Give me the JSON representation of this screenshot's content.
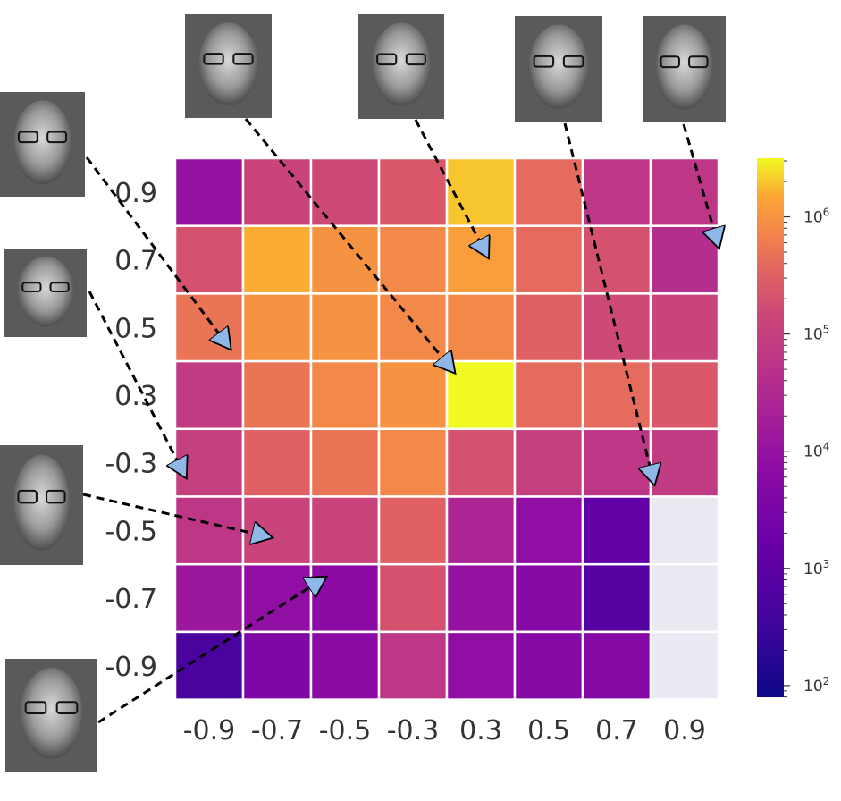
{
  "chart_data": {
    "type": "heatmap",
    "title": "",
    "xlabel": "",
    "ylabel": "",
    "x_categories": [
      "-0.9",
      "-0.7",
      "-0.5",
      "-0.3",
      "0.3",
      "0.5",
      "0.7",
      "0.9"
    ],
    "y_categories": [
      "0.9",
      "0.7",
      "0.5",
      "0.3",
      "-0.3",
      "-0.5",
      "-0.7",
      "-0.9"
    ],
    "values_log10": [
      [
        4.0,
        5.1,
        5.2,
        5.4,
        6.3,
        5.6,
        4.8,
        4.8
      ],
      [
        5.3,
        6.2,
        6.0,
        5.9,
        6.1,
        5.6,
        5.3,
        4.6
      ],
      [
        5.7,
        6.0,
        6.0,
        5.9,
        5.9,
        5.5,
        5.2,
        5.1
      ],
      [
        4.9,
        5.7,
        5.9,
        6.0,
        6.5,
        5.6,
        5.6,
        5.4
      ],
      [
        5.0,
        5.5,
        5.7,
        5.9,
        5.3,
        5.0,
        4.8,
        4.9
      ],
      [
        4.8,
        5.1,
        5.1,
        5.5,
        4.4,
        3.9,
        3.1,
        null
      ],
      [
        4.1,
        3.9,
        3.8,
        5.3,
        4.0,
        3.7,
        2.9,
        null
      ],
      [
        2.7,
        3.6,
        3.8,
        4.8,
        3.9,
        3.7,
        3.7,
        null
      ]
    ],
    "missing_color": "#eaeaf2",
    "colormap": "plasma",
    "colorbar": {
      "scale": "log",
      "range_log10": [
        1.9,
        6.5
      ],
      "ticks": [
        {
          "base": "10",
          "exp": "2"
        },
        {
          "base": "10",
          "exp": "3"
        },
        {
          "base": "10",
          "exp": "4"
        },
        {
          "base": "10",
          "exp": "5"
        },
        {
          "base": "10",
          "exp": "6"
        }
      ]
    },
    "annotations": [
      {
        "name": "face-annotation-1",
        "target": [
          "-0.9",
          "0.5"
        ]
      },
      {
        "name": "face-annotation-2",
        "target": [
          "-0.3",
          "0.3"
        ]
      },
      {
        "name": "face-annotation-3",
        "target": [
          "0.3",
          "0.7"
        ]
      },
      {
        "name": "face-annotation-4",
        "target": [
          "0.7",
          "-0.3"
        ]
      },
      {
        "name": "face-annotation-5",
        "target": [
          "0.9",
          "0.7"
        ]
      },
      {
        "name": "face-annotation-6",
        "target": [
          "-0.9",
          "-0.3"
        ]
      },
      {
        "name": "face-annotation-7",
        "target": [
          "-0.7",
          "-0.5"
        ]
      },
      {
        "name": "face-annotation-8",
        "target": [
          "-0.5",
          "-0.7"
        ]
      }
    ],
    "grid": false,
    "legend": "right"
  }
}
